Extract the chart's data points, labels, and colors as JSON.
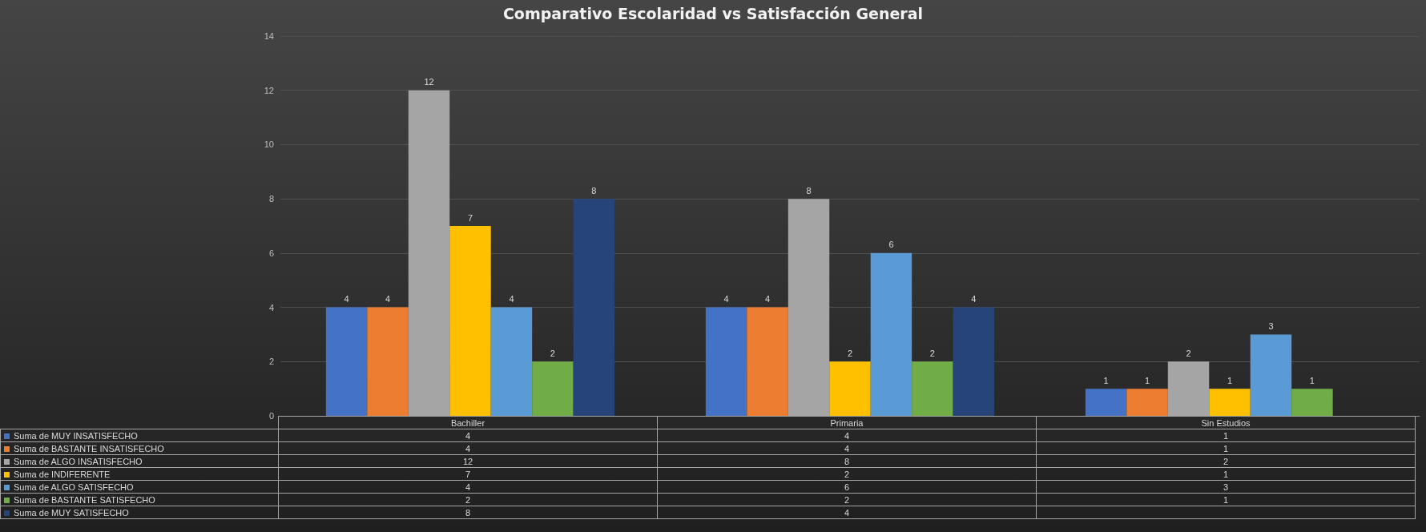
{
  "chart_data": {
    "type": "bar",
    "title": "Comparativo Escolaridad vs Satisfacción General",
    "categories": [
      "Bachiller",
      "Primaria",
      "Sin Estudios"
    ],
    "series": [
      {
        "name": "Suma de MUY INSATISFECHO",
        "color": "#4472c4",
        "values": [
          4,
          4,
          1
        ]
      },
      {
        "name": "Suma de BASTANTE INSATISFECHO",
        "color": "#ed7d31",
        "values": [
          4,
          4,
          1
        ]
      },
      {
        "name": "Suma de ALGO INSATISFECHO",
        "color": "#a5a5a5",
        "values": [
          12,
          8,
          2
        ]
      },
      {
        "name": "Suma de INDIFERENTE",
        "color": "#ffc000",
        "values": [
          7,
          2,
          1
        ]
      },
      {
        "name": "Suma de ALGO SATISFECHO",
        "color": "#5b9bd5",
        "values": [
          4,
          6,
          3
        ]
      },
      {
        "name": "Suma de BASTANTE SATISFECHO",
        "color": "#70ad47",
        "values": [
          2,
          2,
          1
        ]
      },
      {
        "name": "Suma de MUY SATISFECHO",
        "color": "#264478",
        "values": [
          8,
          4,
          null
        ]
      }
    ],
    "annotations": [
      "4",
      "4",
      "1",
      "4",
      "4",
      "1",
      "12",
      "8",
      "2",
      "7",
      "2",
      "1",
      "4",
      "6",
      "3",
      "2",
      "2",
      "1",
      "8",
      "4"
    ],
    "ylim": [
      0,
      14
    ],
    "yticks": [
      0,
      2,
      4,
      6,
      8,
      10,
      12,
      14
    ],
    "grid": "y",
    "legend": "bottom",
    "data_labels": true
  }
}
